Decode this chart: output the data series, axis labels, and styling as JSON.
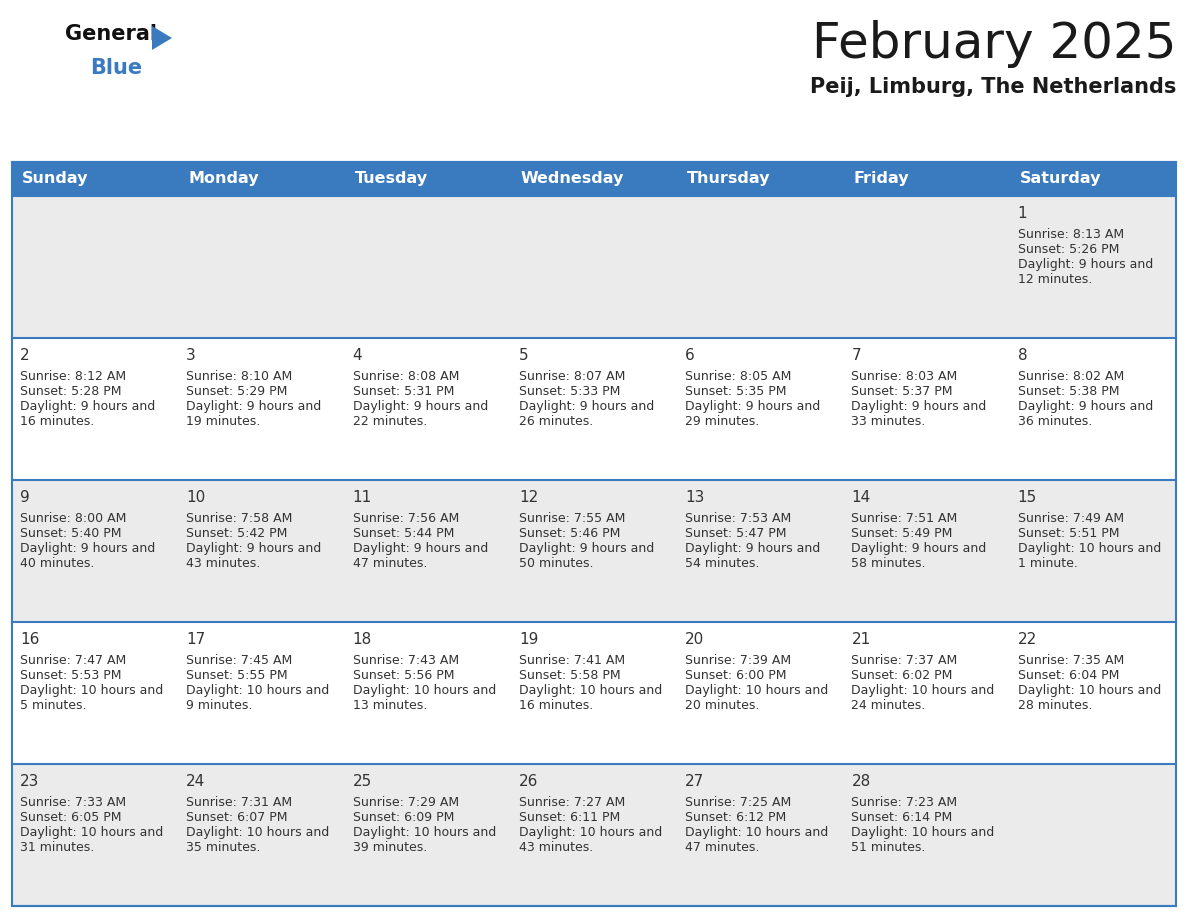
{
  "title": "February 2025",
  "subtitle": "Peij, Limburg, The Netherlands",
  "days_of_week": [
    "Sunday",
    "Monday",
    "Tuesday",
    "Wednesday",
    "Thursday",
    "Friday",
    "Saturday"
  ],
  "header_bg_color": "#3a7abf",
  "header_text_color": "#ffffff",
  "cell_bg_even": "#ebebeb",
  "cell_bg_odd": "#ffffff",
  "grid_color": "#3a7abf",
  "day_num_color": "#333333",
  "cell_text_color": "#333333",
  "title_color": "#1a1a1a",
  "subtitle_color": "#1a1a1a",
  "logo_general_color": "#111111",
  "logo_blue_color": "#3a7abf",
  "logo_tri_color": "#3a7abf",
  "calendar_data": [
    {
      "day": 1,
      "week": 0,
      "dow": 6,
      "sunrise": "8:13 AM",
      "sunset": "5:26 PM",
      "daylight": "9 hours and 12 minutes."
    },
    {
      "day": 2,
      "week": 1,
      "dow": 0,
      "sunrise": "8:12 AM",
      "sunset": "5:28 PM",
      "daylight": "9 hours and 16 minutes."
    },
    {
      "day": 3,
      "week": 1,
      "dow": 1,
      "sunrise": "8:10 AM",
      "sunset": "5:29 PM",
      "daylight": "9 hours and 19 minutes."
    },
    {
      "day": 4,
      "week": 1,
      "dow": 2,
      "sunrise": "8:08 AM",
      "sunset": "5:31 PM",
      "daylight": "9 hours and 22 minutes."
    },
    {
      "day": 5,
      "week": 1,
      "dow": 3,
      "sunrise": "8:07 AM",
      "sunset": "5:33 PM",
      "daylight": "9 hours and 26 minutes."
    },
    {
      "day": 6,
      "week": 1,
      "dow": 4,
      "sunrise": "8:05 AM",
      "sunset": "5:35 PM",
      "daylight": "9 hours and 29 minutes."
    },
    {
      "day": 7,
      "week": 1,
      "dow": 5,
      "sunrise": "8:03 AM",
      "sunset": "5:37 PM",
      "daylight": "9 hours and 33 minutes."
    },
    {
      "day": 8,
      "week": 1,
      "dow": 6,
      "sunrise": "8:02 AM",
      "sunset": "5:38 PM",
      "daylight": "9 hours and 36 minutes."
    },
    {
      "day": 9,
      "week": 2,
      "dow": 0,
      "sunrise": "8:00 AM",
      "sunset": "5:40 PM",
      "daylight": "9 hours and 40 minutes."
    },
    {
      "day": 10,
      "week": 2,
      "dow": 1,
      "sunrise": "7:58 AM",
      "sunset": "5:42 PM",
      "daylight": "9 hours and 43 minutes."
    },
    {
      "day": 11,
      "week": 2,
      "dow": 2,
      "sunrise": "7:56 AM",
      "sunset": "5:44 PM",
      "daylight": "9 hours and 47 minutes."
    },
    {
      "day": 12,
      "week": 2,
      "dow": 3,
      "sunrise": "7:55 AM",
      "sunset": "5:46 PM",
      "daylight": "9 hours and 50 minutes."
    },
    {
      "day": 13,
      "week": 2,
      "dow": 4,
      "sunrise": "7:53 AM",
      "sunset": "5:47 PM",
      "daylight": "9 hours and 54 minutes."
    },
    {
      "day": 14,
      "week": 2,
      "dow": 5,
      "sunrise": "7:51 AM",
      "sunset": "5:49 PM",
      "daylight": "9 hours and 58 minutes."
    },
    {
      "day": 15,
      "week": 2,
      "dow": 6,
      "sunrise": "7:49 AM",
      "sunset": "5:51 PM",
      "daylight": "10 hours and 1 minute."
    },
    {
      "day": 16,
      "week": 3,
      "dow": 0,
      "sunrise": "7:47 AM",
      "sunset": "5:53 PM",
      "daylight": "10 hours and 5 minutes."
    },
    {
      "day": 17,
      "week": 3,
      "dow": 1,
      "sunrise": "7:45 AM",
      "sunset": "5:55 PM",
      "daylight": "10 hours and 9 minutes."
    },
    {
      "day": 18,
      "week": 3,
      "dow": 2,
      "sunrise": "7:43 AM",
      "sunset": "5:56 PM",
      "daylight": "10 hours and 13 minutes."
    },
    {
      "day": 19,
      "week": 3,
      "dow": 3,
      "sunrise": "7:41 AM",
      "sunset": "5:58 PM",
      "daylight": "10 hours and 16 minutes."
    },
    {
      "day": 20,
      "week": 3,
      "dow": 4,
      "sunrise": "7:39 AM",
      "sunset": "6:00 PM",
      "daylight": "10 hours and 20 minutes."
    },
    {
      "day": 21,
      "week": 3,
      "dow": 5,
      "sunrise": "7:37 AM",
      "sunset": "6:02 PM",
      "daylight": "10 hours and 24 minutes."
    },
    {
      "day": 22,
      "week": 3,
      "dow": 6,
      "sunrise": "7:35 AM",
      "sunset": "6:04 PM",
      "daylight": "10 hours and 28 minutes."
    },
    {
      "day": 23,
      "week": 4,
      "dow": 0,
      "sunrise": "7:33 AM",
      "sunset": "6:05 PM",
      "daylight": "10 hours and 31 minutes."
    },
    {
      "day": 24,
      "week": 4,
      "dow": 1,
      "sunrise": "7:31 AM",
      "sunset": "6:07 PM",
      "daylight": "10 hours and 35 minutes."
    },
    {
      "day": 25,
      "week": 4,
      "dow": 2,
      "sunrise": "7:29 AM",
      "sunset": "6:09 PM",
      "daylight": "10 hours and 39 minutes."
    },
    {
      "day": 26,
      "week": 4,
      "dow": 3,
      "sunrise": "7:27 AM",
      "sunset": "6:11 PM",
      "daylight": "10 hours and 43 minutes."
    },
    {
      "day": 27,
      "week": 4,
      "dow": 4,
      "sunrise": "7:25 AM",
      "sunset": "6:12 PM",
      "daylight": "10 hours and 47 minutes."
    },
    {
      "day": 28,
      "week": 4,
      "dow": 5,
      "sunrise": "7:23 AM",
      "sunset": "6:14 PM",
      "daylight": "10 hours and 51 minutes."
    }
  ],
  "num_weeks": 5,
  "fig_width": 11.88,
  "fig_height": 9.18,
  "dpi": 100
}
